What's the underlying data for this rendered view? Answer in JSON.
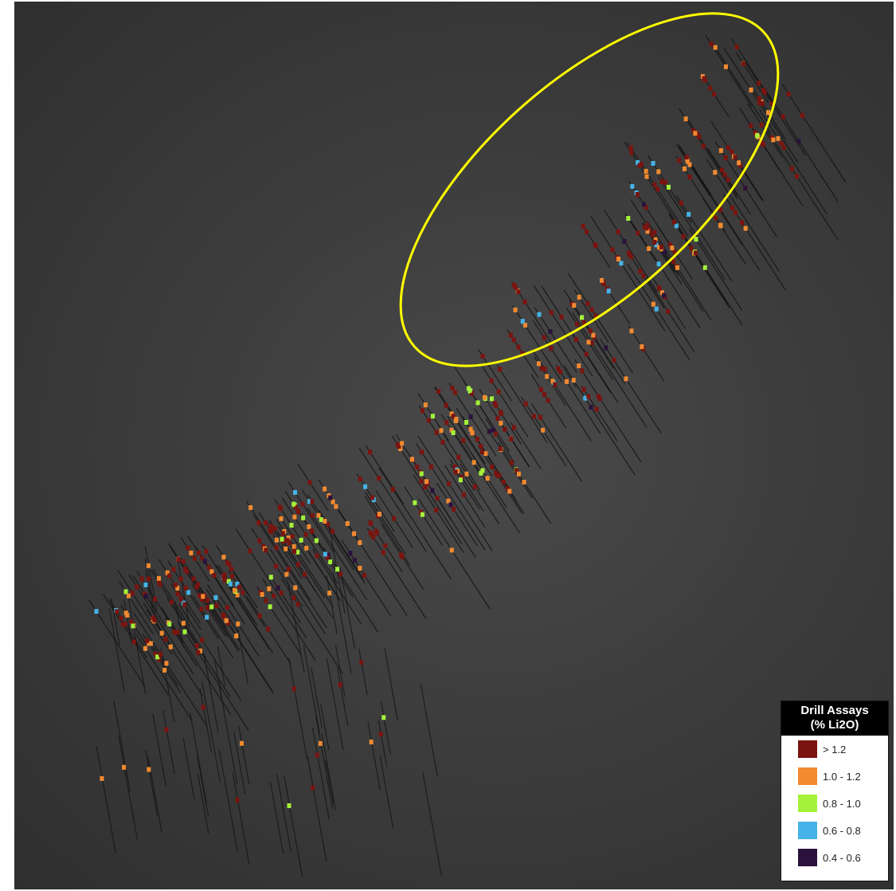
{
  "legend": {
    "title_line1": "Drill Assays",
    "title_line2": "(% Li2O)",
    "classes": [
      {
        "label": "> 1.2",
        "color": "#7a1410"
      },
      {
        "label": "1.0 - 1.2",
        "color": "#f28a30"
      },
      {
        "label": "0.8 - 1.0",
        "color": "#a4f23a"
      },
      {
        "label": "0.6 - 0.8",
        "color": "#45b3e7"
      },
      {
        "label": "0.4 - 0.6",
        "color": "#2a123c"
      }
    ]
  },
  "colors": {
    "background": "#3b3b3b",
    "drill_trace": "#111111",
    "highlight_ellipse": "#ffff00"
  }
}
